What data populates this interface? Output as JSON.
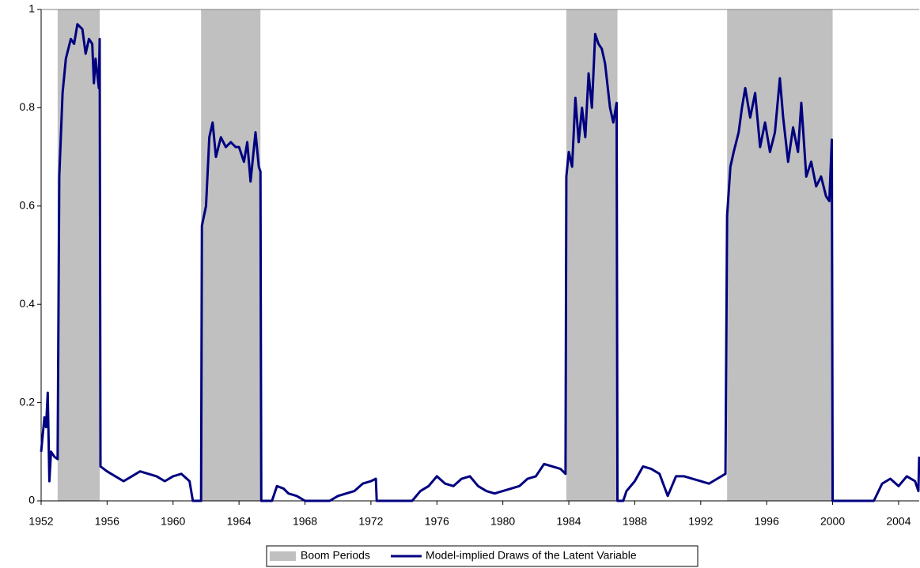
{
  "chart_data": {
    "type": "line",
    "x": [
      1952.0,
      1952.2,
      1952.3,
      1952.4,
      1952.5,
      1952.6,
      1952.8,
      1953.0,
      1953.1,
      1953.3,
      1953.5,
      1953.8,
      1954.0,
      1954.2,
      1954.5,
      1954.7,
      1954.9,
      1955.1,
      1955.2,
      1955.3,
      1955.5,
      1955.55,
      1955.6,
      1956.0,
      1956.5,
      1957.0,
      1957.5,
      1958.0,
      1958.5,
      1959.0,
      1959.5,
      1960.0,
      1960.5,
      1961.0,
      1961.2,
      1961.7,
      1961.75,
      1962.0,
      1962.2,
      1962.4,
      1962.6,
      1962.9,
      1963.2,
      1963.5,
      1963.8,
      1964.0,
      1964.3,
      1964.5,
      1964.7,
      1965.0,
      1965.2,
      1965.3,
      1965.35,
      1966.0,
      1966.3,
      1966.7,
      1967.0,
      1967.5,
      1968.0,
      1969.5,
      1970.0,
      1970.5,
      1971.0,
      1971.5,
      1972.0,
      1972.3,
      1972.35,
      1974.5,
      1975.0,
      1975.5,
      1976.0,
      1976.5,
      1977.0,
      1977.5,
      1978.0,
      1978.5,
      1979.0,
      1979.5,
      1980.0,
      1980.5,
      1981.0,
      1981.5,
      1982.0,
      1982.5,
      1983.0,
      1983.5,
      1983.8,
      1983.85,
      1984.0,
      1984.2,
      1984.4,
      1984.6,
      1984.8,
      1985.0,
      1985.2,
      1985.4,
      1985.6,
      1985.8,
      1986.0,
      1986.2,
      1986.5,
      1986.7,
      1986.9,
      1986.95,
      1987.3,
      1987.5,
      1988.0,
      1988.5,
      1989.0,
      1989.5,
      1990.0,
      1990.5,
      1991.0,
      1991.5,
      1992.0,
      1992.5,
      1993.0,
      1993.5,
      1993.6,
      1993.8,
      1994.0,
      1994.3,
      1994.5,
      1994.7,
      1995.0,
      1995.3,
      1995.6,
      1995.9,
      1996.2,
      1996.5,
      1996.8,
      1997.0,
      1997.3,
      1997.6,
      1997.9,
      1998.1,
      1998.4,
      1998.7,
      1999.0,
      1999.3,
      1999.6,
      1999.8,
      1999.95,
      2000.0,
      2002.5,
      2003.0,
      2003.5,
      2004.0,
      2004.5,
      2005.0,
      2005.2,
      2005.25
    ],
    "series": [
      {
        "name": "Model-implied Draws of the Latent Variable",
        "color": "#000080",
        "values": [
          0.1,
          0.17,
          0.15,
          0.22,
          0.04,
          0.1,
          0.09,
          0.085,
          0.66,
          0.83,
          0.9,
          0.94,
          0.93,
          0.97,
          0.96,
          0.91,
          0.94,
          0.93,
          0.85,
          0.9,
          0.84,
          0.94,
          0.07,
          0.06,
          0.05,
          0.04,
          0.05,
          0.06,
          0.055,
          0.05,
          0.04,
          0.05,
          0.055,
          0.04,
          0.0,
          0.0,
          0.56,
          0.6,
          0.74,
          0.77,
          0.7,
          0.74,
          0.72,
          0.73,
          0.72,
          0.72,
          0.69,
          0.73,
          0.65,
          0.75,
          0.68,
          0.67,
          0.0,
          0.0,
          0.03,
          0.025,
          0.015,
          0.01,
          0.0,
          0.0,
          0.01,
          0.015,
          0.02,
          0.035,
          0.04,
          0.045,
          0.0,
          0.0,
          0.02,
          0.03,
          0.05,
          0.035,
          0.03,
          0.045,
          0.05,
          0.03,
          0.02,
          0.015,
          0.02,
          0.025,
          0.03,
          0.045,
          0.05,
          0.075,
          0.07,
          0.065,
          0.055,
          0.66,
          0.71,
          0.68,
          0.82,
          0.73,
          0.8,
          0.74,
          0.87,
          0.8,
          0.95,
          0.93,
          0.92,
          0.89,
          0.8,
          0.77,
          0.81,
          0.0,
          0.0,
          0.02,
          0.04,
          0.07,
          0.065,
          0.055,
          0.01,
          0.05,
          0.05,
          0.045,
          0.04,
          0.035,
          0.045,
          0.055,
          0.58,
          0.68,
          0.71,
          0.75,
          0.8,
          0.84,
          0.78,
          0.83,
          0.72,
          0.77,
          0.71,
          0.75,
          0.86,
          0.78,
          0.69,
          0.76,
          0.71,
          0.81,
          0.66,
          0.69,
          0.64,
          0.66,
          0.62,
          0.61,
          0.735,
          0.0,
          0.0,
          0.035,
          0.045,
          0.03,
          0.05,
          0.04,
          0.02,
          0.09
        ]
      }
    ],
    "shaded_periods": {
      "name": "Boom Periods",
      "color": "#c0c0c0",
      "starts": [
        1953.0,
        1961.7,
        1983.85,
        1993.6
      ],
      "ends": [
        1955.55,
        1965.3,
        1986.95,
        2000.0
      ]
    },
    "xlim": [
      1952,
      2005.25
    ],
    "xticks": [
      1952,
      1956,
      1960,
      1964,
      1968,
      1972,
      1976,
      1980,
      1984,
      1988,
      1992,
      1996,
      2000,
      2004
    ],
    "ylim": [
      0,
      1
    ],
    "yticks": [
      0,
      0.2,
      0.4,
      0.6,
      0.8,
      1
    ],
    "grid": false,
    "legend": "bottom"
  }
}
